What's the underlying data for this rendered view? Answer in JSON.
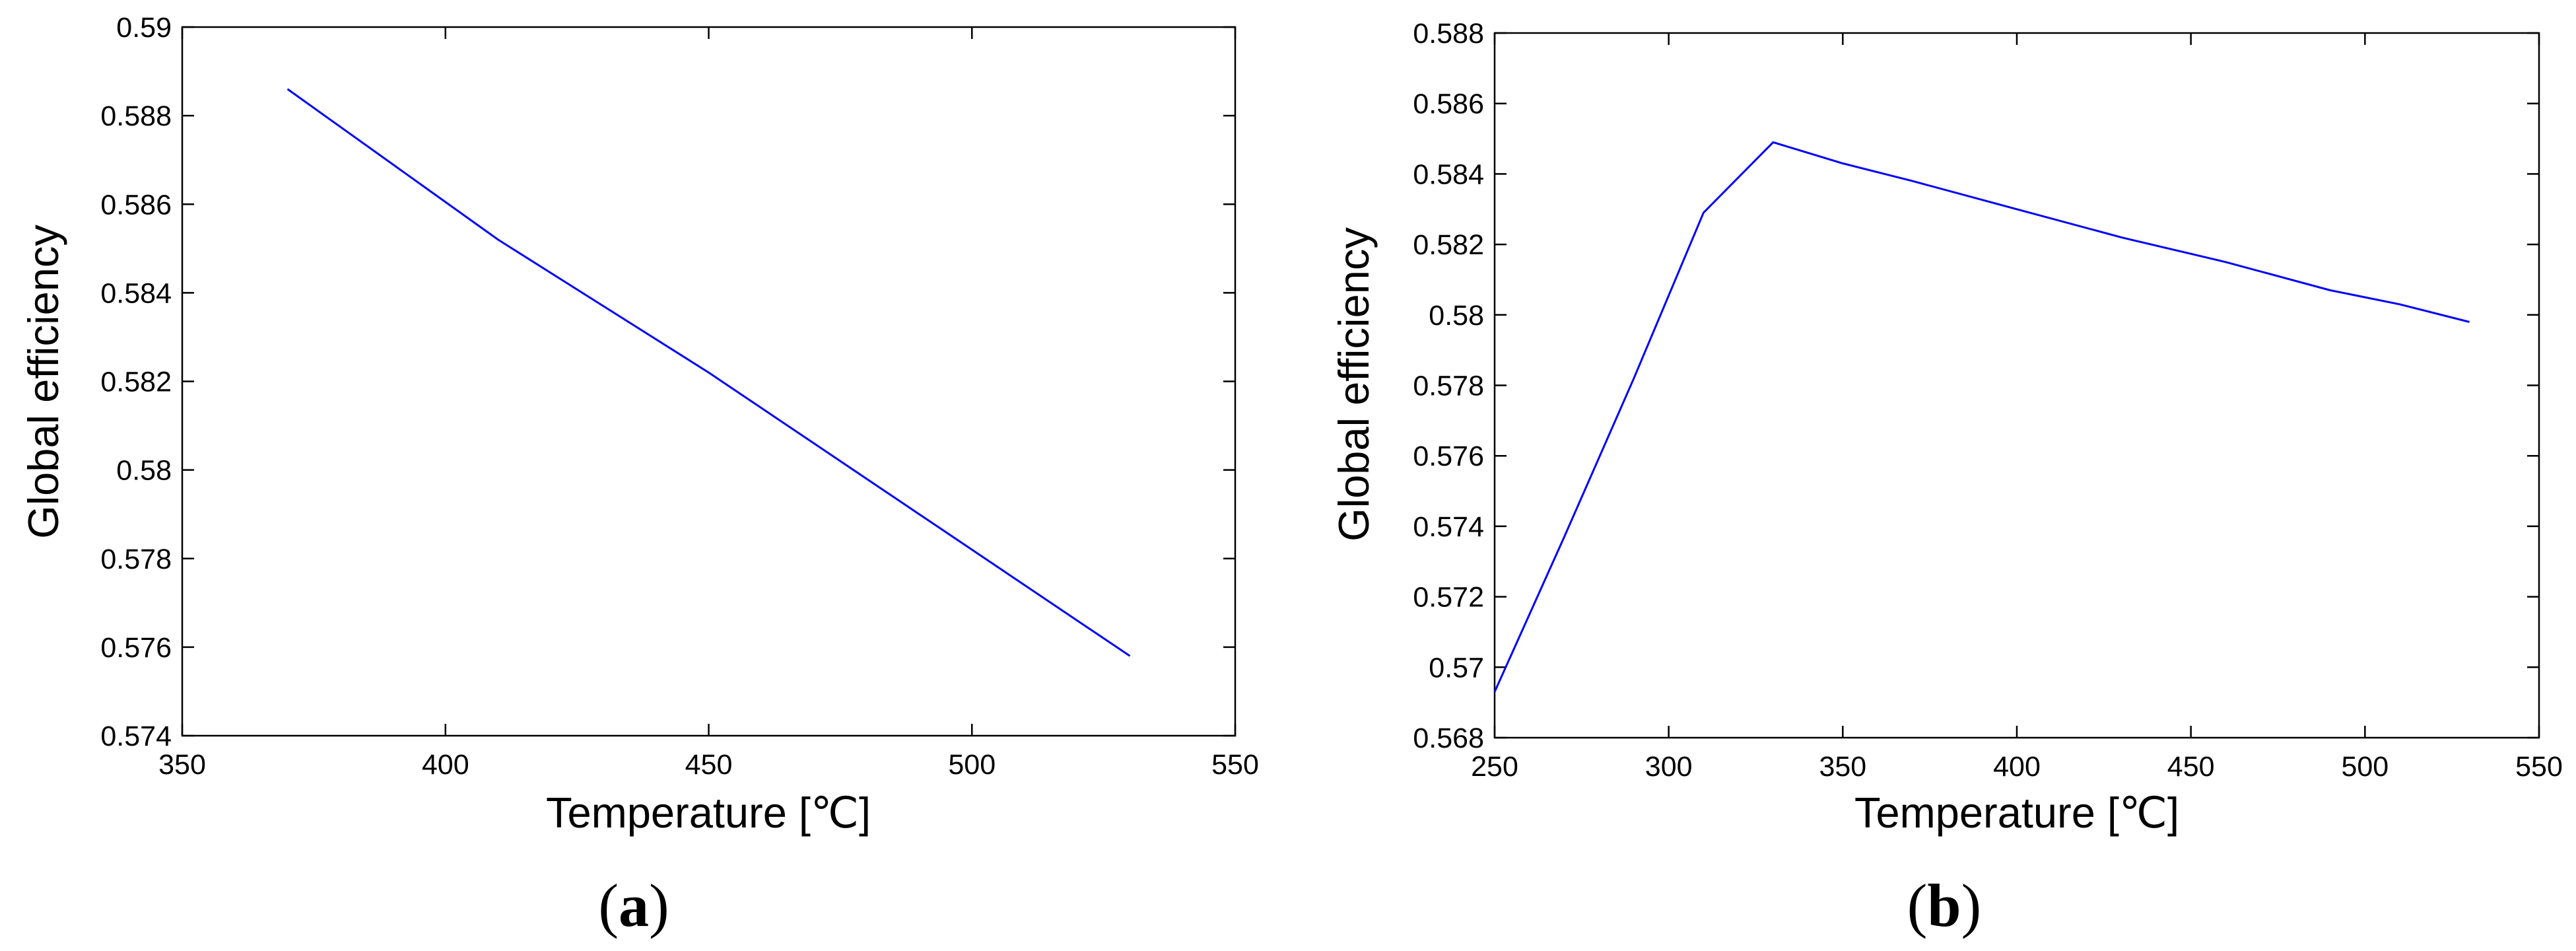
{
  "chart_data": [
    {
      "type": "line",
      "panel_label": "a",
      "xlabel": "Temperature [℃]",
      "ylabel": "Global efficiency",
      "xlim": [
        350,
        550
      ],
      "ylim": [
        0.574,
        0.59
      ],
      "xticks": [
        350,
        400,
        450,
        500,
        550
      ],
      "xtick_labels": [
        "350",
        "400",
        "450",
        "500",
        "550"
      ],
      "yticks": [
        0.574,
        0.576,
        0.578,
        0.58,
        0.582,
        0.584,
        0.586,
        0.588,
        0.59
      ],
      "ytick_labels": [
        "0.574",
        "0.576",
        "0.578",
        "0.58",
        "0.582",
        "0.584",
        "0.586",
        "0.588",
        "0.59"
      ],
      "grid": false,
      "series": [
        {
          "color": "#0000ff",
          "x": [
            370,
            390,
            410,
            430,
            450,
            470,
            490,
            510,
            530
          ],
          "y": [
            0.5886,
            0.5869,
            0.5852,
            0.5837,
            0.5822,
            0.5806,
            0.579,
            0.5774,
            0.5758
          ]
        }
      ]
    },
    {
      "type": "line",
      "panel_label": "b",
      "xlabel": "Temperature [℃]",
      "ylabel": "Global efficiency",
      "xlim": [
        250,
        550
      ],
      "ylim": [
        0.568,
        0.588
      ],
      "xticks": [
        250,
        300,
        350,
        400,
        450,
        500,
        550
      ],
      "xtick_labels": [
        "250",
        "300",
        "350",
        "400",
        "450",
        "500",
        "550"
      ],
      "yticks": [
        0.568,
        0.57,
        0.572,
        0.574,
        0.576,
        0.578,
        0.58,
        0.582,
        0.584,
        0.586,
        0.588
      ],
      "ytick_labels": [
        "0.568",
        "0.57",
        "0.572",
        "0.574",
        "0.576",
        "0.578",
        "0.58",
        "0.582",
        "0.584",
        "0.586",
        "0.588"
      ],
      "grid": false,
      "series": [
        {
          "color": "#0000ff",
          "x": [
            250,
            270,
            290,
            310,
            330,
            350,
            370,
            400,
            430,
            460,
            490,
            510,
            530
          ],
          "y": [
            0.5693,
            0.5737,
            0.5782,
            0.5829,
            0.5849,
            0.5843,
            0.5838,
            0.583,
            0.5822,
            0.5815,
            0.5807,
            0.5803,
            0.5798
          ]
        }
      ]
    }
  ]
}
